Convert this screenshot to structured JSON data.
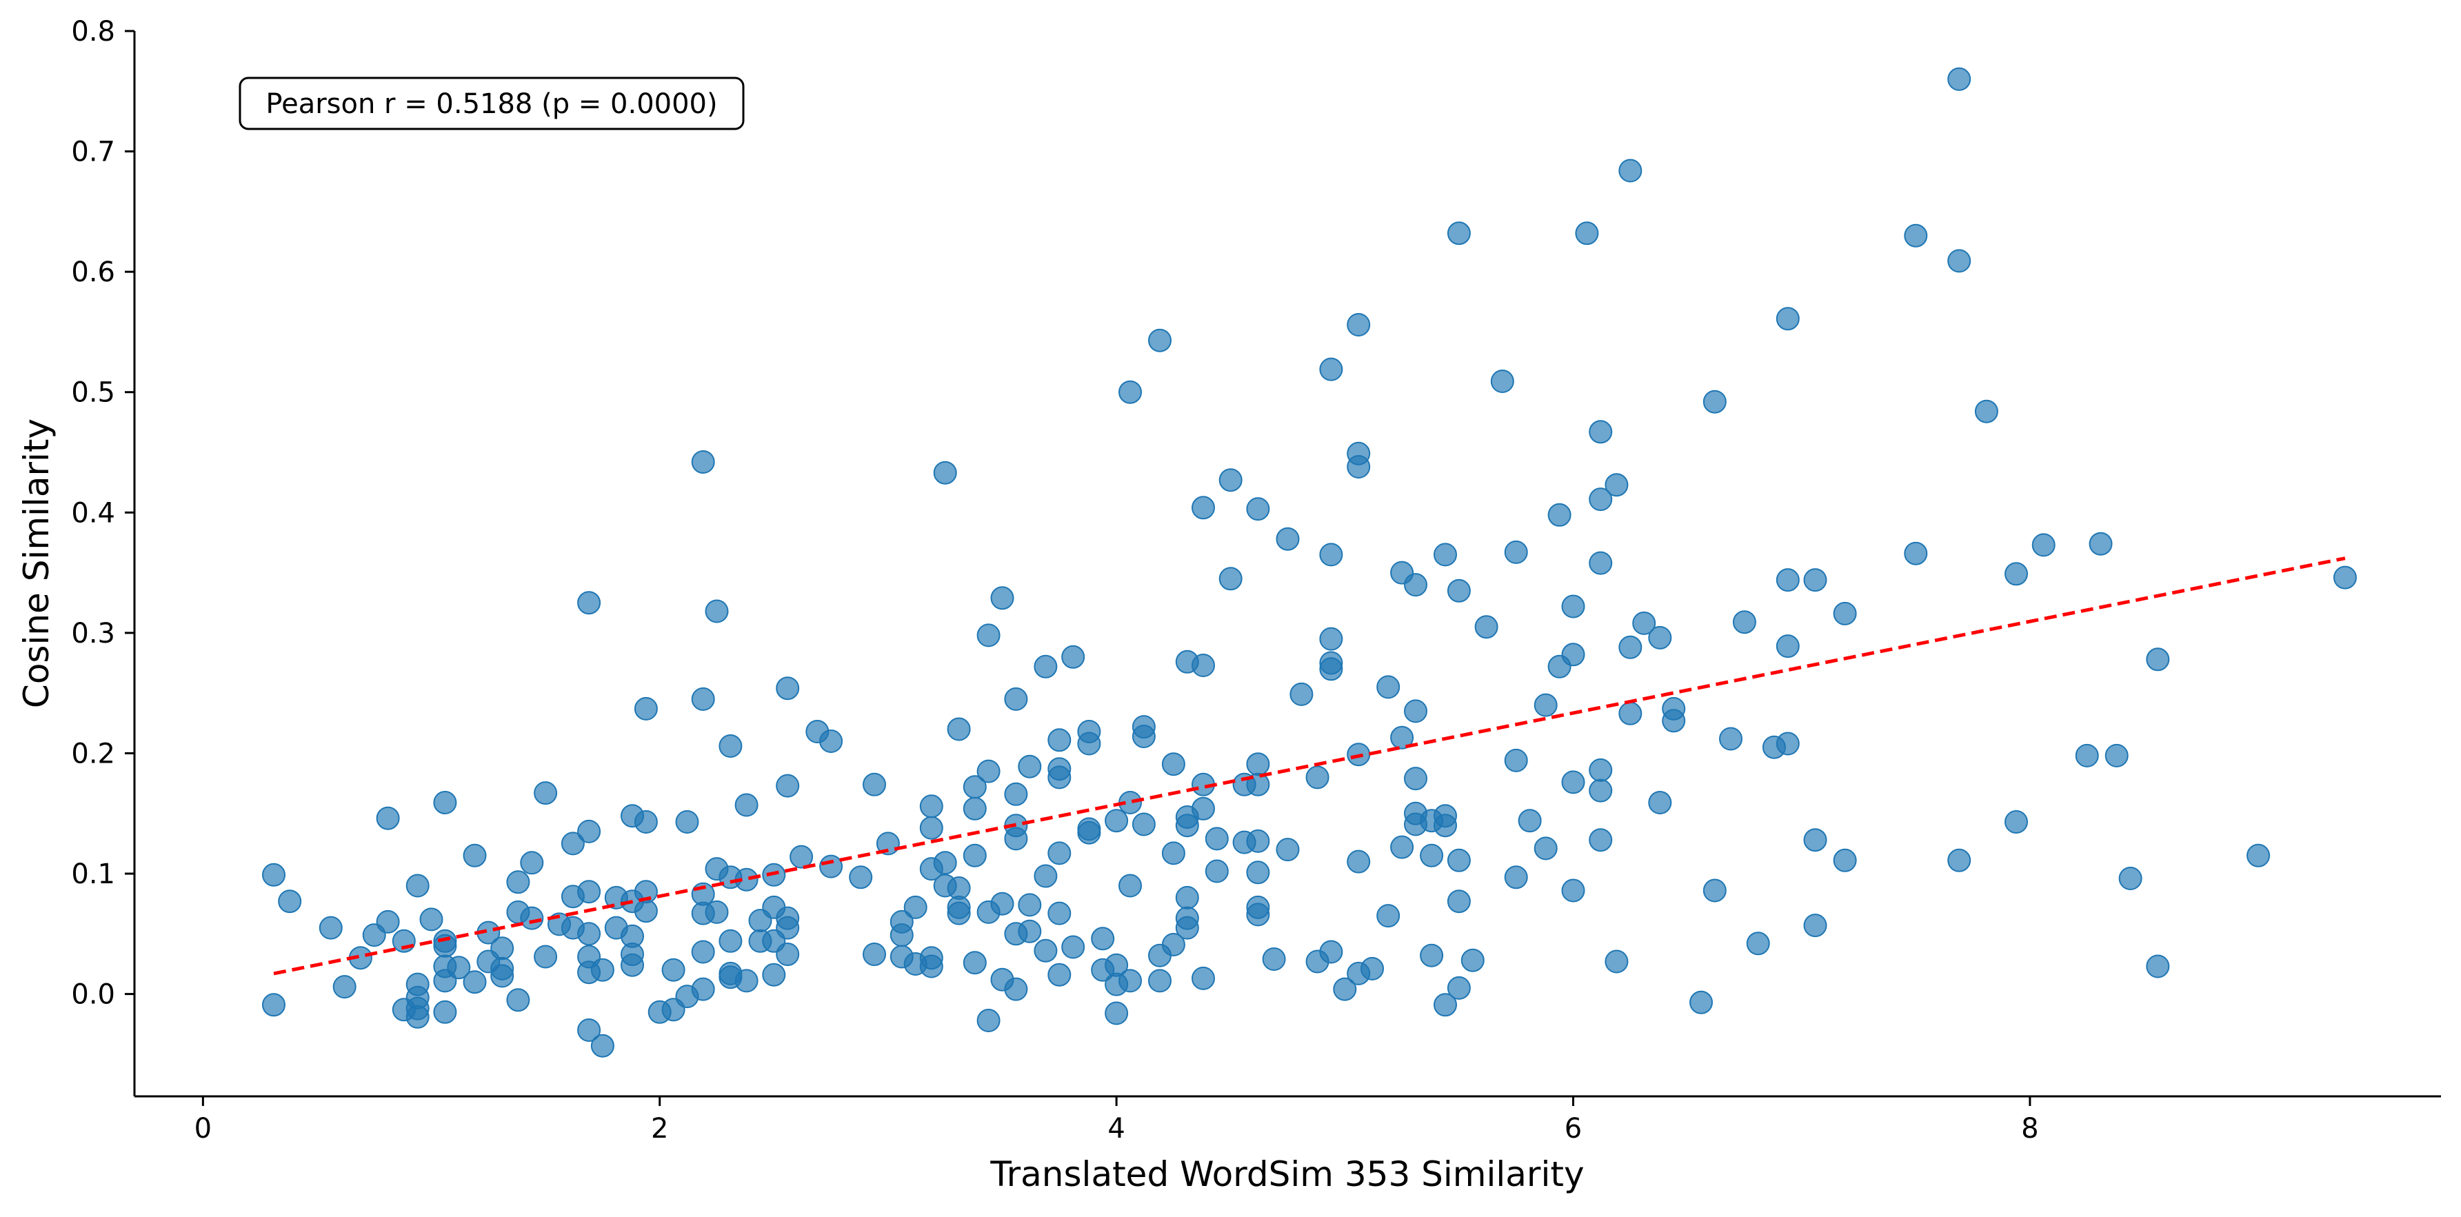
{
  "chart_data": {
    "type": "scatter",
    "title": "",
    "xlabel": "Translated WordSim 353 Similarity",
    "ylabel": "Cosine Similarity",
    "xlim": [
      -0.3,
      9.8
    ],
    "ylim": [
      -0.085,
      0.8
    ],
    "x_ticks": [
      0,
      2,
      4,
      6,
      8
    ],
    "y_ticks": [
      0.0,
      0.1,
      0.2,
      0.3,
      0.4,
      0.5,
      0.6,
      0.7,
      0.8
    ],
    "x_tick_labels": [
      "0",
      "2",
      "4",
      "6",
      "8"
    ],
    "y_tick_labels": [
      "0.0",
      "0.1",
      "0.2",
      "0.3",
      "0.4",
      "0.5",
      "0.6",
      "0.7",
      "0.8"
    ],
    "grid": false,
    "annotation": "Pearson r = 0.5188 (p = 0.0000)",
    "annotation_position": "top-left",
    "point_color": "#1f77b4",
    "trend_color": "#ff0000",
    "trend_line": {
      "x": [
        0.31,
        9.38
      ],
      "y": [
        0.017,
        0.362
      ]
    },
    "points": [
      [
        0.31,
        0.099
      ],
      [
        0.31,
        -0.009
      ],
      [
        0.38,
        0.077
      ],
      [
        0.56,
        0.055
      ],
      [
        0.62,
        0.006
      ],
      [
        0.69,
        0.03
      ],
      [
        0.75,
        0.049
      ],
      [
        0.81,
        0.146
      ],
      [
        0.81,
        0.06
      ],
      [
        0.88,
        0.044
      ],
      [
        0.88,
        -0.013
      ],
      [
        0.94,
        0.09
      ],
      [
        0.94,
        0.008
      ],
      [
        0.94,
        -0.003
      ],
      [
        0.94,
        -0.012
      ],
      [
        0.94,
        -0.019
      ],
      [
        1.0,
        0.062
      ],
      [
        1.06,
        0.159
      ],
      [
        1.06,
        0.044
      ],
      [
        1.06,
        0.04
      ],
      [
        1.06,
        0.023
      ],
      [
        1.06,
        0.011
      ],
      [
        1.06,
        -0.015
      ],
      [
        1.12,
        0.022
      ],
      [
        1.19,
        0.115
      ],
      [
        1.19,
        0.01
      ],
      [
        1.25,
        0.051
      ],
      [
        1.25,
        0.027
      ],
      [
        1.31,
        0.038
      ],
      [
        1.31,
        0.021
      ],
      [
        1.31,
        0.015
      ],
      [
        1.38,
        0.093
      ],
      [
        1.38,
        0.068
      ],
      [
        1.38,
        -0.005
      ],
      [
        1.44,
        0.109
      ],
      [
        1.44,
        0.063
      ],
      [
        1.5,
        0.167
      ],
      [
        1.5,
        0.031
      ],
      [
        1.56,
        0.058
      ],
      [
        1.62,
        0.125
      ],
      [
        1.62,
        0.081
      ],
      [
        1.62,
        0.055
      ],
      [
        1.69,
        0.325
      ],
      [
        1.69,
        0.135
      ],
      [
        1.69,
        0.085
      ],
      [
        1.69,
        0.05
      ],
      [
        1.69,
        0.031
      ],
      [
        1.69,
        0.018
      ],
      [
        1.69,
        -0.03
      ],
      [
        1.75,
        0.02
      ],
      [
        1.75,
        -0.043
      ],
      [
        1.81,
        0.08
      ],
      [
        1.81,
        0.055
      ],
      [
        1.88,
        0.148
      ],
      [
        1.88,
        0.077
      ],
      [
        1.88,
        0.048
      ],
      [
        1.88,
        0.033
      ],
      [
        1.88,
        0.024
      ],
      [
        1.94,
        0.237
      ],
      [
        1.94,
        0.143
      ],
      [
        1.94,
        0.085
      ],
      [
        1.94,
        0.069
      ],
      [
        2.0,
        -0.015
      ],
      [
        2.06,
        0.02
      ],
      [
        2.06,
        -0.013
      ],
      [
        2.12,
        0.143
      ],
      [
        2.12,
        -0.002
      ],
      [
        2.19,
        0.442
      ],
      [
        2.19,
        0.245
      ],
      [
        2.19,
        0.083
      ],
      [
        2.19,
        0.067
      ],
      [
        2.19,
        0.035
      ],
      [
        2.19,
        0.004
      ],
      [
        2.25,
        0.318
      ],
      [
        2.25,
        0.104
      ],
      [
        2.25,
        0.068
      ],
      [
        2.31,
        0.206
      ],
      [
        2.31,
        0.097
      ],
      [
        2.31,
        0.044
      ],
      [
        2.31,
        0.017
      ],
      [
        2.31,
        0.014
      ],
      [
        2.38,
        0.157
      ],
      [
        2.38,
        0.095
      ],
      [
        2.38,
        0.011
      ],
      [
        2.44,
        0.061
      ],
      [
        2.44,
        0.044
      ],
      [
        2.5,
        0.099
      ],
      [
        2.5,
        0.072
      ],
      [
        2.5,
        0.044
      ],
      [
        2.5,
        0.016
      ],
      [
        2.56,
        0.254
      ],
      [
        2.56,
        0.173
      ],
      [
        2.56,
        0.063
      ],
      [
        2.56,
        0.055
      ],
      [
        2.56,
        0.033
      ],
      [
        2.62,
        0.114
      ],
      [
        2.69,
        0.218
      ],
      [
        2.75,
        0.21
      ],
      [
        2.75,
        0.106
      ],
      [
        2.88,
        0.097
      ],
      [
        2.94,
        0.174
      ],
      [
        2.94,
        0.033
      ],
      [
        3.0,
        0.125
      ],
      [
        3.06,
        0.06
      ],
      [
        3.06,
        0.049
      ],
      [
        3.06,
        0.031
      ],
      [
        3.12,
        0.072
      ],
      [
        3.12,
        0.025
      ],
      [
        3.19,
        0.156
      ],
      [
        3.19,
        0.138
      ],
      [
        3.19,
        0.104
      ],
      [
        3.19,
        0.03
      ],
      [
        3.19,
        0.023
      ],
      [
        3.25,
        0.433
      ],
      [
        3.25,
        0.109
      ],
      [
        3.25,
        0.09
      ],
      [
        3.31,
        0.22
      ],
      [
        3.31,
        0.088
      ],
      [
        3.31,
        0.072
      ],
      [
        3.31,
        0.067
      ],
      [
        3.38,
        0.172
      ],
      [
        3.38,
        0.154
      ],
      [
        3.38,
        0.115
      ],
      [
        3.38,
        0.026
      ],
      [
        3.44,
        0.298
      ],
      [
        3.44,
        0.185
      ],
      [
        3.44,
        0.068
      ],
      [
        3.44,
        -0.022
      ],
      [
        3.5,
        0.329
      ],
      [
        3.5,
        0.075
      ],
      [
        3.5,
        0.012
      ],
      [
        3.56,
        0.245
      ],
      [
        3.56,
        0.166
      ],
      [
        3.56,
        0.14
      ],
      [
        3.56,
        0.129
      ],
      [
        3.56,
        0.05
      ],
      [
        3.56,
        0.004
      ],
      [
        3.62,
        0.189
      ],
      [
        3.62,
        0.074
      ],
      [
        3.62,
        0.052
      ],
      [
        3.69,
        0.272
      ],
      [
        3.69,
        0.098
      ],
      [
        3.69,
        0.036
      ],
      [
        3.75,
        0.211
      ],
      [
        3.75,
        0.187
      ],
      [
        3.75,
        0.18
      ],
      [
        3.75,
        0.117
      ],
      [
        3.75,
        0.067
      ],
      [
        3.75,
        0.016
      ],
      [
        3.81,
        0.28
      ],
      [
        3.81,
        0.039
      ],
      [
        3.88,
        0.218
      ],
      [
        3.88,
        0.208
      ],
      [
        3.88,
        0.137
      ],
      [
        3.88,
        0.134
      ],
      [
        3.94,
        0.046
      ],
      [
        3.94,
        0.02
      ],
      [
        4.0,
        0.144
      ],
      [
        4.0,
        0.024
      ],
      [
        4.0,
        0.008
      ],
      [
        4.0,
        -0.016
      ],
      [
        4.06,
        0.5
      ],
      [
        4.06,
        0.159
      ],
      [
        4.06,
        0.09
      ],
      [
        4.06,
        0.011
      ],
      [
        4.12,
        0.222
      ],
      [
        4.12,
        0.214
      ],
      [
        4.12,
        0.141
      ],
      [
        4.19,
        0.543
      ],
      [
        4.19,
        0.032
      ],
      [
        4.19,
        0.011
      ],
      [
        4.25,
        0.191
      ],
      [
        4.25,
        0.117
      ],
      [
        4.25,
        0.041
      ],
      [
        4.31,
        0.276
      ],
      [
        4.31,
        0.147
      ],
      [
        4.31,
        0.14
      ],
      [
        4.31,
        0.08
      ],
      [
        4.31,
        0.063
      ],
      [
        4.31,
        0.055
      ],
      [
        4.38,
        0.404
      ],
      [
        4.38,
        0.273
      ],
      [
        4.38,
        0.174
      ],
      [
        4.38,
        0.154
      ],
      [
        4.38,
        0.013
      ],
      [
        4.44,
        0.129
      ],
      [
        4.44,
        0.102
      ],
      [
        4.5,
        0.427
      ],
      [
        4.5,
        0.345
      ],
      [
        4.56,
        0.174
      ],
      [
        4.56,
        0.126
      ],
      [
        4.62,
        0.403
      ],
      [
        4.62,
        0.191
      ],
      [
        4.62,
        0.174
      ],
      [
        4.62,
        0.127
      ],
      [
        4.62,
        0.101
      ],
      [
        4.62,
        0.072
      ],
      [
        4.62,
        0.066
      ],
      [
        4.69,
        0.029
      ],
      [
        4.75,
        0.378
      ],
      [
        4.75,
        0.12
      ],
      [
        4.81,
        0.249
      ],
      [
        4.88,
        0.18
      ],
      [
        4.88,
        0.027
      ],
      [
        4.94,
        0.519
      ],
      [
        4.94,
        0.365
      ],
      [
        4.94,
        0.295
      ],
      [
        4.94,
        0.275
      ],
      [
        4.94,
        0.27
      ],
      [
        4.94,
        0.035
      ],
      [
        5.0,
        0.004
      ],
      [
        5.06,
        0.556
      ],
      [
        5.06,
        0.449
      ],
      [
        5.06,
        0.438
      ],
      [
        5.06,
        0.199
      ],
      [
        5.06,
        0.11
      ],
      [
        5.06,
        0.017
      ],
      [
        5.12,
        0.021
      ],
      [
        5.19,
        0.255
      ],
      [
        5.19,
        0.065
      ],
      [
        5.25,
        0.35
      ],
      [
        5.25,
        0.213
      ],
      [
        5.25,
        0.122
      ],
      [
        5.31,
        0.15
      ],
      [
        5.31,
        0.235
      ],
      [
        5.31,
        0.179
      ],
      [
        5.31,
        0.141
      ],
      [
        5.31,
        0.34
      ],
      [
        5.38,
        0.144
      ],
      [
        5.38,
        0.115
      ],
      [
        5.38,
        0.032
      ],
      [
        5.44,
        0.365
      ],
      [
        5.44,
        0.148
      ],
      [
        5.44,
        0.14
      ],
      [
        5.44,
        -0.009
      ],
      [
        5.5,
        0.632
      ],
      [
        5.5,
        0.335
      ],
      [
        5.5,
        0.111
      ],
      [
        5.5,
        0.077
      ],
      [
        5.5,
        0.005
      ],
      [
        5.56,
        0.028
      ],
      [
        5.62,
        0.305
      ],
      [
        5.69,
        0.509
      ],
      [
        5.75,
        0.367
      ],
      [
        5.75,
        0.194
      ],
      [
        5.75,
        0.097
      ],
      [
        5.81,
        0.144
      ],
      [
        5.88,
        0.24
      ],
      [
        5.88,
        0.121
      ],
      [
        5.94,
        0.398
      ],
      [
        5.94,
        0.272
      ],
      [
        6.0,
        0.322
      ],
      [
        6.0,
        0.282
      ],
      [
        6.0,
        0.176
      ],
      [
        6.0,
        0.086
      ],
      [
        6.06,
        0.632
      ],
      [
        6.12,
        0.467
      ],
      [
        6.12,
        0.411
      ],
      [
        6.12,
        0.358
      ],
      [
        6.12,
        0.186
      ],
      [
        6.12,
        0.169
      ],
      [
        6.12,
        0.128
      ],
      [
        6.19,
        0.423
      ],
      [
        6.19,
        0.027
      ],
      [
        6.25,
        0.684
      ],
      [
        6.25,
        0.288
      ],
      [
        6.25,
        0.233
      ],
      [
        6.31,
        0.308
      ],
      [
        6.38,
        0.296
      ],
      [
        6.38,
        0.159
      ],
      [
        6.44,
        0.237
      ],
      [
        6.44,
        0.227
      ],
      [
        6.56,
        -0.007
      ],
      [
        6.62,
        0.492
      ],
      [
        6.62,
        0.086
      ],
      [
        6.69,
        0.212
      ],
      [
        6.75,
        0.309
      ],
      [
        6.81,
        0.042
      ],
      [
        6.88,
        0.205
      ],
      [
        6.94,
        0.561
      ],
      [
        6.94,
        0.344
      ],
      [
        6.94,
        0.289
      ],
      [
        6.94,
        0.208
      ],
      [
        7.06,
        0.344
      ],
      [
        7.06,
        0.128
      ],
      [
        7.06,
        0.057
      ],
      [
        7.19,
        0.316
      ],
      [
        7.19,
        0.111
      ],
      [
        7.5,
        0.63
      ],
      [
        7.5,
        0.366
      ],
      [
        7.69,
        0.76
      ],
      [
        7.69,
        0.609
      ],
      [
        7.69,
        0.111
      ],
      [
        7.81,
        0.484
      ],
      [
        7.94,
        0.349
      ],
      [
        7.94,
        0.143
      ],
      [
        8.06,
        0.373
      ],
      [
        8.25,
        0.198
      ],
      [
        8.31,
        0.374
      ],
      [
        8.38,
        0.198
      ],
      [
        8.44,
        0.096
      ],
      [
        8.56,
        0.278
      ],
      [
        8.56,
        0.023
      ],
      [
        9.0,
        0.115
      ],
      [
        9.38,
        0.346
      ]
    ]
  }
}
